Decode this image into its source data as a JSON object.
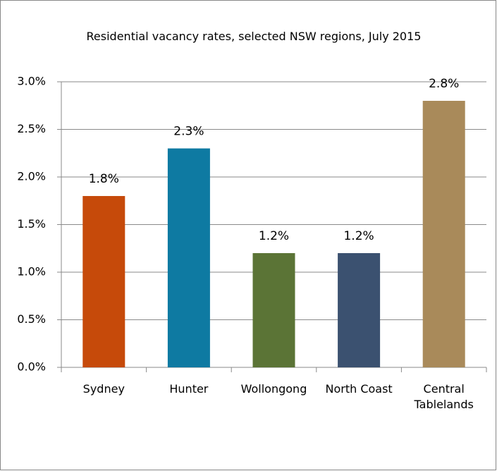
{
  "chart_data": {
    "type": "bar",
    "title": "Residential vacancy rates, selected NSW regions,  July 2015",
    "categories": [
      "Sydney",
      "Hunter",
      "Wollongong",
      "North Coast",
      "Central Tablelands"
    ],
    "values": [
      1.8,
      2.3,
      1.2,
      1.2,
      2.8
    ],
    "value_labels": [
      "1.8%",
      "2.3%",
      "1.2%",
      "1.2%",
      "2.8%"
    ],
    "colors": [
      "#c64a0a",
      "#0e7aa2",
      "#5b7436",
      "#3b5170",
      "#a98a5a"
    ],
    "ylim": [
      0,
      3
    ],
    "yticks": [
      {
        "value": 0,
        "label": "0.0%"
      },
      {
        "value": 0.5,
        "label": "0.5%"
      },
      {
        "value": 1,
        "label": "1.0%"
      },
      {
        "value": 1.5,
        "label": "1.5%"
      },
      {
        "value": 2,
        "label": "2.0%"
      },
      {
        "value": 2.5,
        "label": "2.5%"
      },
      {
        "value": 3,
        "label": "3.0%"
      }
    ],
    "grid": true
  }
}
